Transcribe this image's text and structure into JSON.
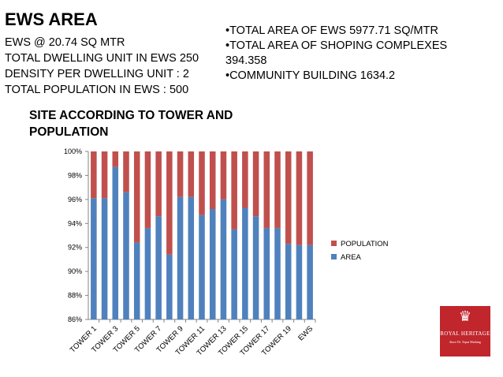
{
  "header": {
    "title": "EWS AREA",
    "left_lines": [
      "EWS @ 20.74 SQ MTR",
      "TOTAL DWELLING UNIT IN EWS 250",
      "DENSITY PER DWELLING UNIT : 2",
      "TOTAL POPULATION IN EWS : 500"
    ],
    "right_bullets": [
      "•TOTAL  AREA OF EWS 5977.71 SQ/MTR",
      "•TOTAL AREA OF SHOPING COMPLEXES 394.358",
      "•COMMUNITY BUILDING 1634.2"
    ]
  },
  "chart_heading": "SITE ACCORDING TO TOWER AND POPULATION",
  "chart_data": {
    "type": "bar",
    "stacked": "percent",
    "categories": [
      "TOWER 1",
      "TOWER 2",
      "TOWER 3",
      "TOWER 4",
      "TOWER 5",
      "TOWER 6",
      "TOWER 7",
      "TOWER 8",
      "TOWER 9",
      "TOWER 10",
      "TOWER 11",
      "TOWER 12",
      "TOWER 13",
      "TOWER 14",
      "TOWER 15",
      "TOWER 16",
      "TOWER 17",
      "TOWER 18",
      "TOWER 19",
      "TOWER 20",
      "EWS"
    ],
    "x_tick_labels": [
      "TOWER 1",
      "TOWER 3",
      "TOWER 5",
      "TOWER 7",
      "TOWER 9",
      "TOWER 11",
      "TOWER 13",
      "TOWER 15",
      "TOWER 17",
      "TOWER 19",
      "EWS"
    ],
    "series": [
      {
        "name": "AREA",
        "color": "#4f81bd",
        "values": [
          96.1,
          96.1,
          98.7,
          96.6,
          92.4,
          93.6,
          94.6,
          91.4,
          96.2,
          96.2,
          94.7,
          95.2,
          96.0,
          93.5,
          95.3,
          94.6,
          93.6,
          93.6,
          92.3,
          92.2,
          92.2
        ]
      },
      {
        "name": "POPULATION",
        "color": "#c0504d",
        "values": [
          3.9,
          3.9,
          1.3,
          3.4,
          7.6,
          6.4,
          5.4,
          8.6,
          3.8,
          3.8,
          5.3,
          4.8,
          4.0,
          6.5,
          4.7,
          5.4,
          6.4,
          6.4,
          7.7,
          7.8,
          7.8
        ]
      }
    ],
    "ylim": [
      86,
      100
    ],
    "y_ticks": [
      "86%",
      "88%",
      "90%",
      "92%",
      "94%",
      "96%",
      "98%",
      "100%"
    ],
    "grid": false,
    "legend": "right"
  },
  "logo": {
    "brand": "ROYAL HERITAGE",
    "tagline": "Since Dr. Tapas Marking"
  }
}
